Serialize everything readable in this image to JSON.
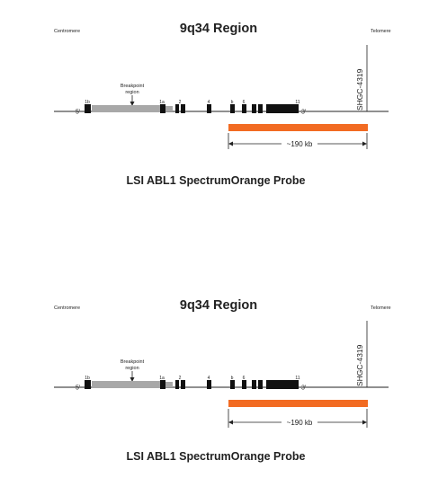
{
  "panels": [
    {
      "title": "9q34 Region",
      "left_label": "Centromere",
      "right_label": "Telomere",
      "five_prime": "5'",
      "three_prime": "3'",
      "breakpoint_label_1": "Breakpoint",
      "breakpoint_label_2": "region",
      "marker": "SHGC-4319",
      "exons": [
        "1b",
        "1a",
        "2",
        "4",
        "b",
        "6",
        "11"
      ],
      "size_label": "~190 kb",
      "probe_name": "LSI ABL1 SpectrumOrange Probe"
    },
    {
      "title": "9q34 Region",
      "left_label": "Centromere",
      "right_label": "Telomere",
      "five_prime": "5'",
      "three_prime": "3'",
      "breakpoint_label_1": "Breakpoint",
      "breakpoint_label_2": "region",
      "marker": "SHGC-4319",
      "exons": [
        "1b",
        "1a",
        "2",
        "4",
        "b",
        "6",
        "11"
      ],
      "size_label": "~190 kb",
      "probe_name": "LSI ABL1 SpectrumOrange Probe"
    }
  ],
  "colors": {
    "probe": "#f26b22",
    "breakpoint_region": "#a8a8a8",
    "exon": "#111111",
    "line": "#222222"
  }
}
